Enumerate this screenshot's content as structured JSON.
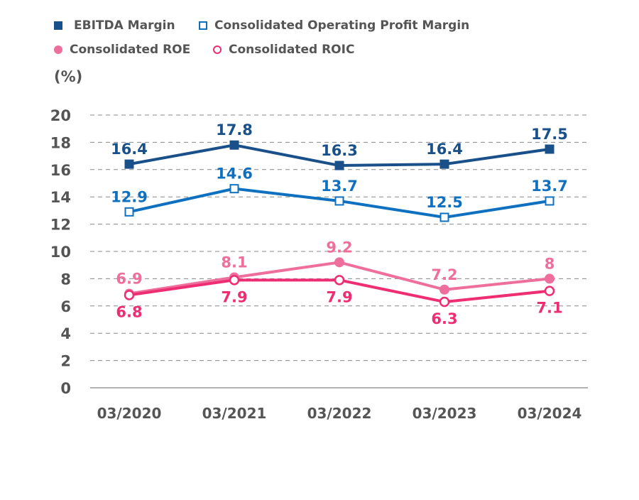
{
  "chart_data": {
    "type": "line",
    "unit_label": "(%)",
    "categories": [
      "03/2020",
      "03/2021",
      "03/2022",
      "03/2023",
      "03/2024"
    ],
    "ylim": [
      0,
      20
    ],
    "yticks": [
      0,
      2,
      4,
      6,
      8,
      10,
      12,
      14,
      16,
      18,
      20
    ],
    "grid": true,
    "legend_position": "top-left",
    "series": [
      {
        "name": "EBITDA Margin",
        "values": [
          16.4,
          17.8,
          16.3,
          16.4,
          17.5
        ],
        "color": "#1a5089",
        "marker": "filled-square",
        "label_pos": "above"
      },
      {
        "name": "Consolidated Operating Profit Margin",
        "values": [
          12.9,
          14.6,
          13.7,
          12.5,
          13.7
        ],
        "color": "#0f70c0",
        "marker": "open-square",
        "label_pos": "above"
      },
      {
        "name": "Consolidated ROE",
        "values": [
          6.9,
          8.1,
          9.2,
          7.2,
          8
        ],
        "color": "#ee6f9b",
        "marker": "filled-circle",
        "label_pos": "above"
      },
      {
        "name": "Consolidated ROIC",
        "values": [
          6.8,
          7.9,
          7.9,
          6.3,
          7.1
        ],
        "color": "#ee2d73",
        "marker": "open-circle",
        "label_pos": "below"
      }
    ]
  }
}
